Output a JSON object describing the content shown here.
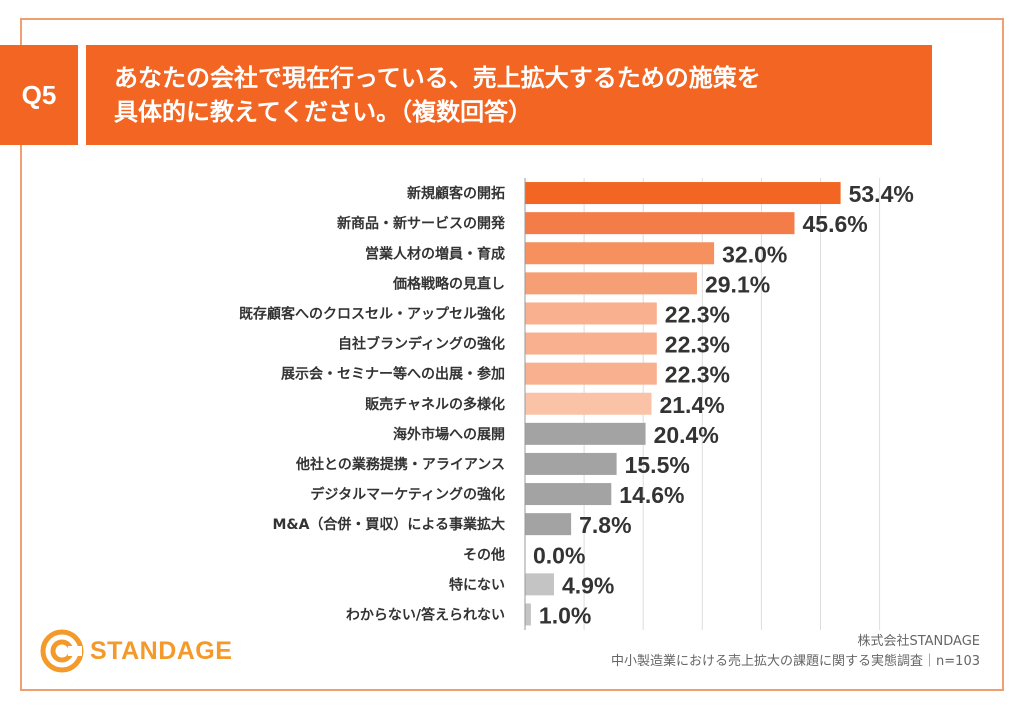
{
  "header": {
    "badge": "Q5",
    "title_line1": "あなたの会社で現在行っている、売上拡大するための施策を",
    "title_line2": "具体的に教えてください。（複数回答）"
  },
  "chart_data": {
    "type": "bar",
    "orientation": "horizontal",
    "categories": [
      "新規顧客の開拓",
      "新商品・新サービスの開発",
      "営業人材の増員・育成",
      "価格戦略の見直し",
      "既存顧客へのクロスセル・アップセル強化",
      "自社ブランディングの強化",
      "展示会・セミナー等への出展・参加",
      "販売チャネルの多様化",
      "海外市場への展開",
      "他社との業務提携・アライアンス",
      "デジタルマーケティングの強化",
      "M&A（合併・買収）による事業拡大",
      "その他",
      "特にない",
      "わからない/答えられない"
    ],
    "values": [
      53.4,
      45.6,
      32.0,
      29.1,
      22.3,
      22.3,
      22.3,
      21.4,
      20.4,
      15.5,
      14.6,
      7.8,
      0.0,
      4.9,
      1.0
    ],
    "value_labels": [
      "53.4%",
      "45.6%",
      "32.0%",
      "29.1%",
      "22.3%",
      "22.3%",
      "22.3%",
      "21.4%",
      "20.4%",
      "15.5%",
      "14.6%",
      "7.8%",
      "0.0%",
      "4.9%",
      "1.0%"
    ],
    "colors": [
      "#f26522",
      "#f47c48",
      "#f6905f",
      "#f69e74",
      "#f8b08e",
      "#f8b08e",
      "#f8b08e",
      "#fac3a7",
      "#a3a3a3",
      "#a3a3a3",
      "#a3a3a3",
      "#a3a3a3",
      "#a3a3a3",
      "#c4c4c4",
      "#c4c4c4"
    ],
    "xlim": [
      0,
      60
    ],
    "grid": true
  },
  "footer": {
    "logo_text": "STANDAGE",
    "source_line1": "株式会社STANDAGE",
    "source_line2": "中小製造業における売上拡大の課題に関する実態調査｜n=103"
  }
}
